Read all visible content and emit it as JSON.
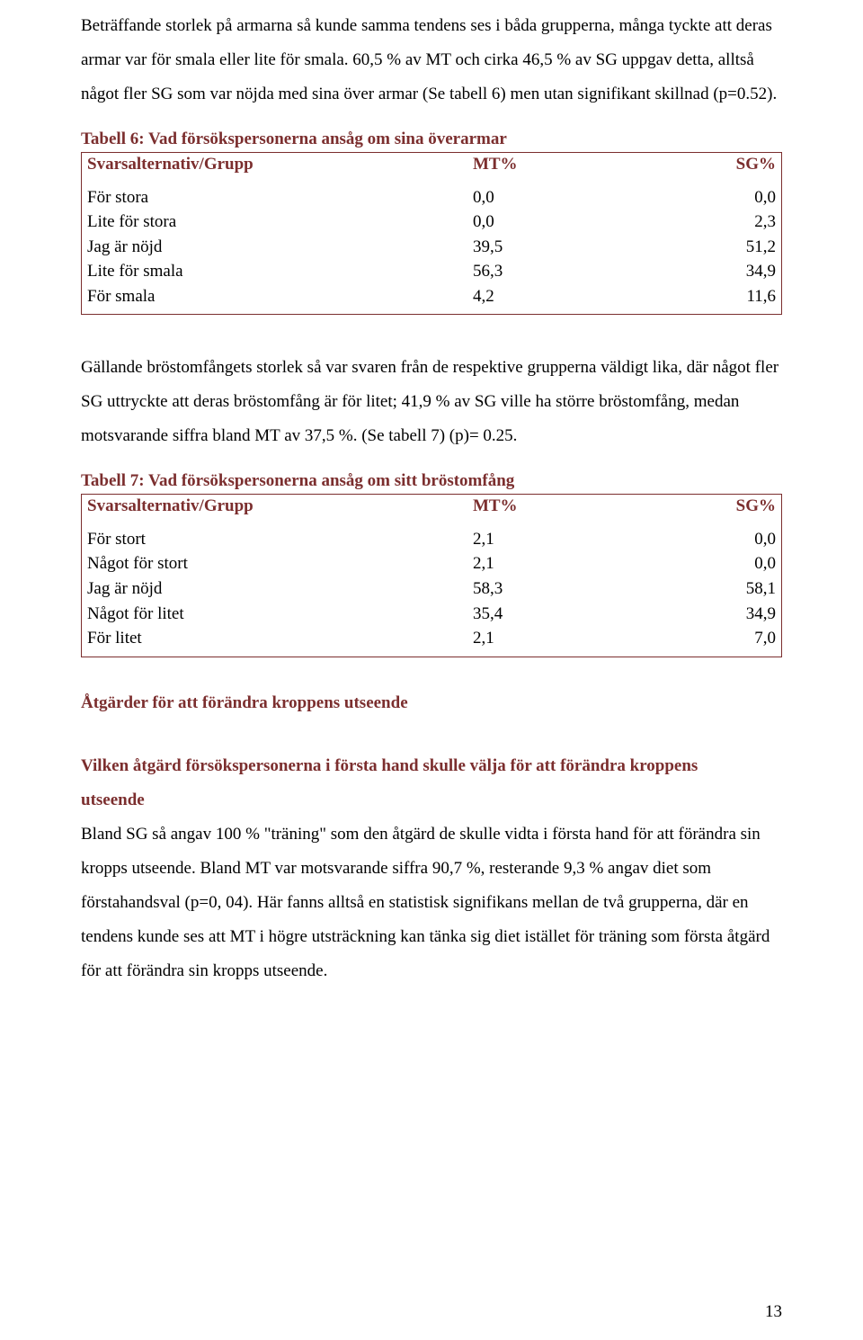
{
  "paragraph1": "Beträffande storlek på armarna så kunde samma tendens ses i båda grupperna, många tyckte att deras armar var för smala eller lite för smala. 60,5 % av MT och cirka 46,5 % av SG uppgav detta, alltså något fler SG som var nöjda med sina över armar (Se tabell 6) men utan signifikant skillnad (p=0.52).",
  "table6": {
    "caption": "Tabell 6: Vad försökspersonerna ansåg om sina överarmar",
    "header_label": "Svarsalternativ/Grupp",
    "header_mt": "MT%",
    "header_sg": "SG%",
    "rows": [
      {
        "label": "För stora",
        "mt": "0,0",
        "sg": "0,0"
      },
      {
        "label": "Lite för stora",
        "mt": "0,0",
        "sg": "2,3"
      },
      {
        "label": "Jag är nöjd",
        "mt": "39,5",
        "sg": "51,2"
      },
      {
        "label": "Lite för smala",
        "mt": "56,3",
        "sg": "34,9"
      },
      {
        "label": "För smala",
        "mt": "4,2",
        "sg": "11,6"
      }
    ]
  },
  "paragraph2": "Gällande bröstomfångets storlek så var svaren från de respektive grupperna väldigt lika, där något fler SG uttryckte att deras bröstomfång är för litet; 41,9 % av SG ville ha större bröstomfång, medan motsvarande siffra bland MT av 37,5 %. (Se tabell 7) (p)= 0.25.",
  "table7": {
    "caption": "Tabell 7: Vad försökspersonerna ansåg om sitt bröstomfång",
    "header_label": "Svarsalternativ/Grupp",
    "header_mt": "MT%",
    "header_sg": "SG%",
    "rows": [
      {
        "label": "För stort",
        "mt": "2,1",
        "sg": "0,0"
      },
      {
        "label": "Något för stort",
        "mt": "2,1",
        "sg": "0,0"
      },
      {
        "label": "Jag är nöjd",
        "mt": "58,3",
        "sg": "58,1"
      },
      {
        "label": "Något för litet",
        "mt": "35,4",
        "sg": "34,9"
      },
      {
        "label": "För litet",
        "mt": "2,1",
        "sg": "7,0"
      }
    ]
  },
  "section_heading": "Åtgärder för att förändra kroppens utseende",
  "subheading_line1": "Vilken åtgärd försökspersonerna i första hand skulle välja för att förändra kroppens",
  "subheading_line2": "utseende",
  "paragraph3": "Bland SG så angav 100 % \"träning\" som den åtgärd de skulle vidta i första hand för att förändra sin kropps utseende. Bland MT var motsvarande siffra 90,7 %, resterande 9,3 % angav diet som förstahandsval (p=0, 04). Här fanns alltså en statistisk signifikans mellan de två grupperna, där en tendens kunde ses att MT i högre utsträckning kan tänka sig diet istället för träning som första åtgärd för att förändra sin kropps utseende.",
  "page_number": "13"
}
